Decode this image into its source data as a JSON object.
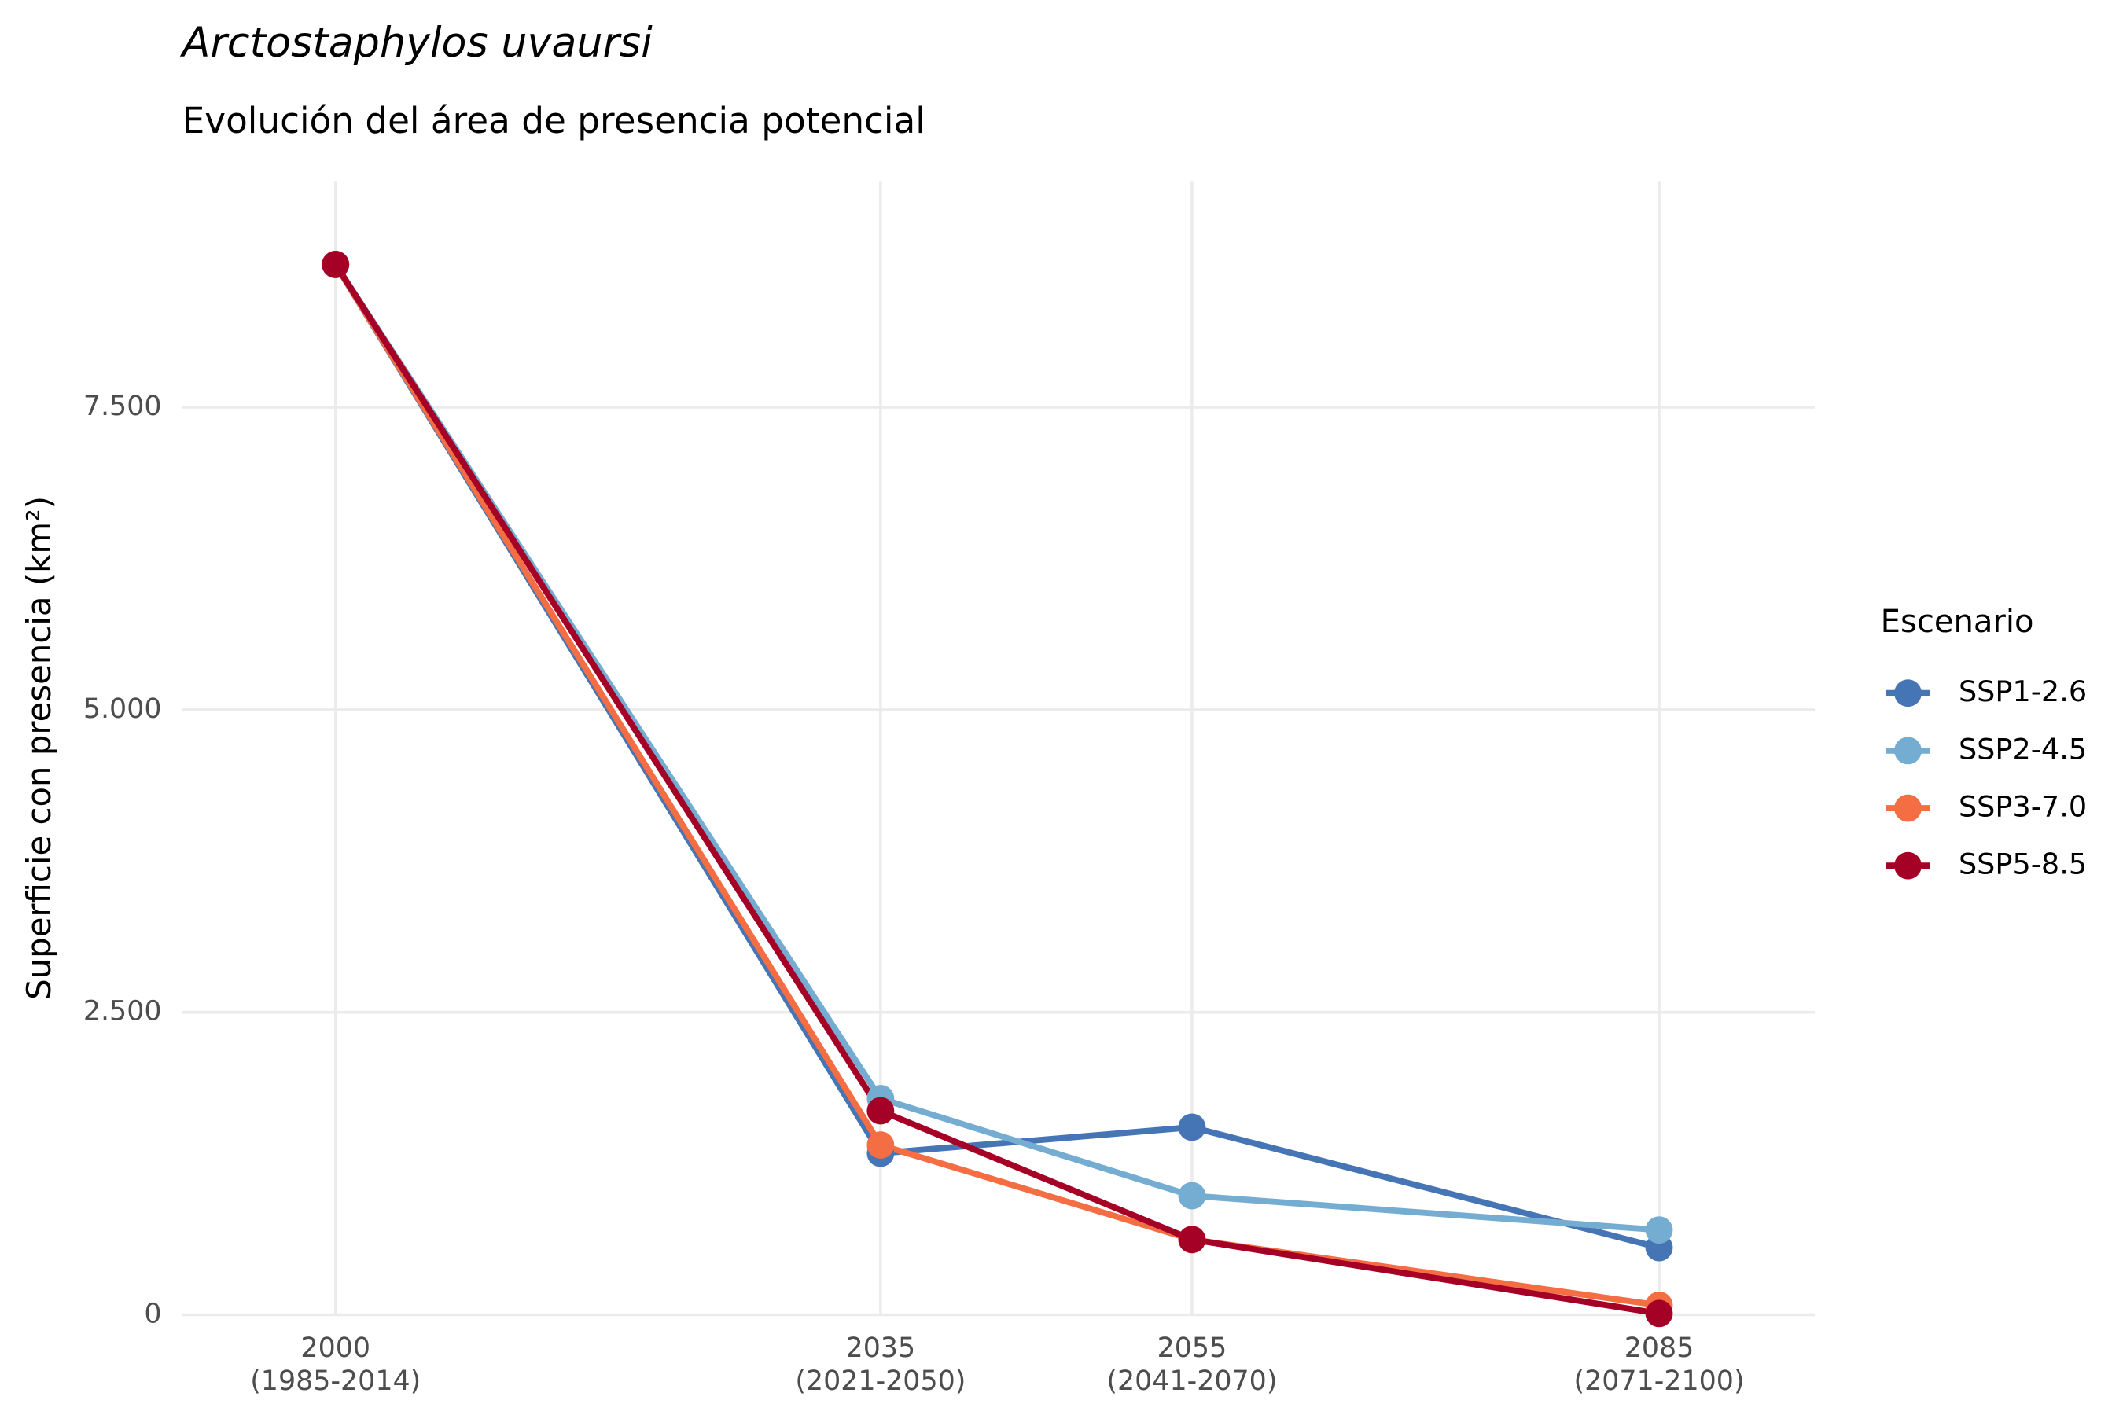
{
  "chart_data": {
    "type": "line",
    "title": "Arctostaphylos uvaursi",
    "subtitle": "Evolución del área de presencia potencial",
    "y_label": "Superficie con presencia (km²)",
    "legend_title": "Escenario",
    "legend": "right",
    "grid": true,
    "x": [
      2000,
      2035,
      2055,
      2085
    ],
    "xlim": [
      1990.15,
      2095
    ],
    "xticks": [
      {
        "value": 2000,
        "label": "2000\n(1985-2014)"
      },
      {
        "value": 2035,
        "label": "2035\n(2021-2050)"
      },
      {
        "value": 2055,
        "label": "2055\n(2041-2070)"
      },
      {
        "value": 2085,
        "label": "2085\n(2071-2100)"
      }
    ],
    "ylim": [
      0,
      9370
    ],
    "yticks": [
      0,
      {
        "value": 2500,
        "label": "2.500"
      },
      {
        "value": 5000,
        "label": "5.000"
      },
      {
        "value": 7500,
        "label": "7.500"
      }
    ],
    "series": [
      {
        "name": "SSP1-2.6",
        "color": "#4575b4",
        "values": [
          8680,
          1335,
          1550,
          555
        ]
      },
      {
        "name": "SSP2-4.5",
        "color": "#74add1",
        "values": [
          8680,
          1787,
          984,
          701
        ]
      },
      {
        "name": "SSP3-7.0",
        "color": "#f46d43",
        "values": [
          8680,
          1403,
          622,
          79
        ]
      },
      {
        "name": "SSP5-8.5",
        "color": "#a50026",
        "values": [
          8680,
          1686,
          622,
          11
        ]
      }
    ]
  }
}
